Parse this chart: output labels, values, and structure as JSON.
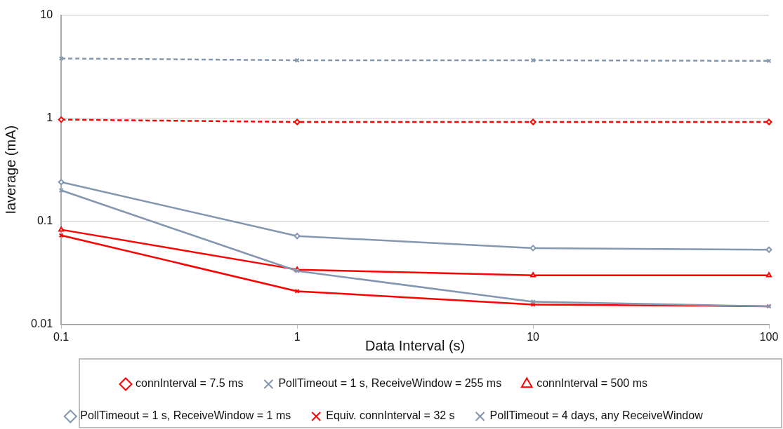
{
  "chart_data": {
    "type": "line",
    "xlabel": "Data Interval (s)",
    "ylabel": "Iaverage (mA)",
    "x": [
      0.1,
      1,
      10,
      100
    ],
    "log": "xy",
    "xlim": [
      0.1,
      100
    ],
    "xticks": [
      0.1,
      1,
      10,
      100
    ],
    "ylim": [
      0.01,
      10
    ],
    "yticks": [
      0.01,
      0.1,
      1,
      10
    ],
    "grid": "y",
    "legend": "bottom",
    "series": [
      {
        "name": "connInterval = 7.5 ms",
        "color": "#ff0000",
        "values": [
          0.97,
          0.92,
          0.92,
          0.92
        ],
        "marker": "diamond",
        "line_style": "dashed"
      },
      {
        "name": "PollTimeout = 1 s, ReceiveWindow = 255 ms",
        "color": "#8497b0",
        "values": [
          3.8,
          3.65,
          3.65,
          3.6
        ],
        "marker": "cross",
        "line_style": "dashed"
      },
      {
        "name": "connInterval = 500 ms",
        "color": "#ff0000",
        "values": [
          0.083,
          0.034,
          0.03,
          0.03
        ],
        "marker": "triangle",
        "line_style": "solid"
      },
      {
        "name": "PollTimeout = 1 s, ReceiveWindow = 1 ms",
        "color": "#8497b0",
        "values": [
          0.24,
          0.072,
          0.055,
          0.053
        ],
        "marker": "diamond",
        "line_style": "solid"
      },
      {
        "name": "Equiv. connInterval = 32 s",
        "color": "#ff0000",
        "values": [
          0.073,
          0.021,
          0.0156,
          0.015
        ],
        "marker": "cross",
        "line_style": "solid"
      },
      {
        "name": "PollTimeout = 4 days, any ReceiveWindow",
        "color": "#8497b0",
        "values": [
          0.2,
          0.033,
          0.0166,
          0.015
        ],
        "marker": "cross",
        "line_style": "solid"
      }
    ]
  }
}
